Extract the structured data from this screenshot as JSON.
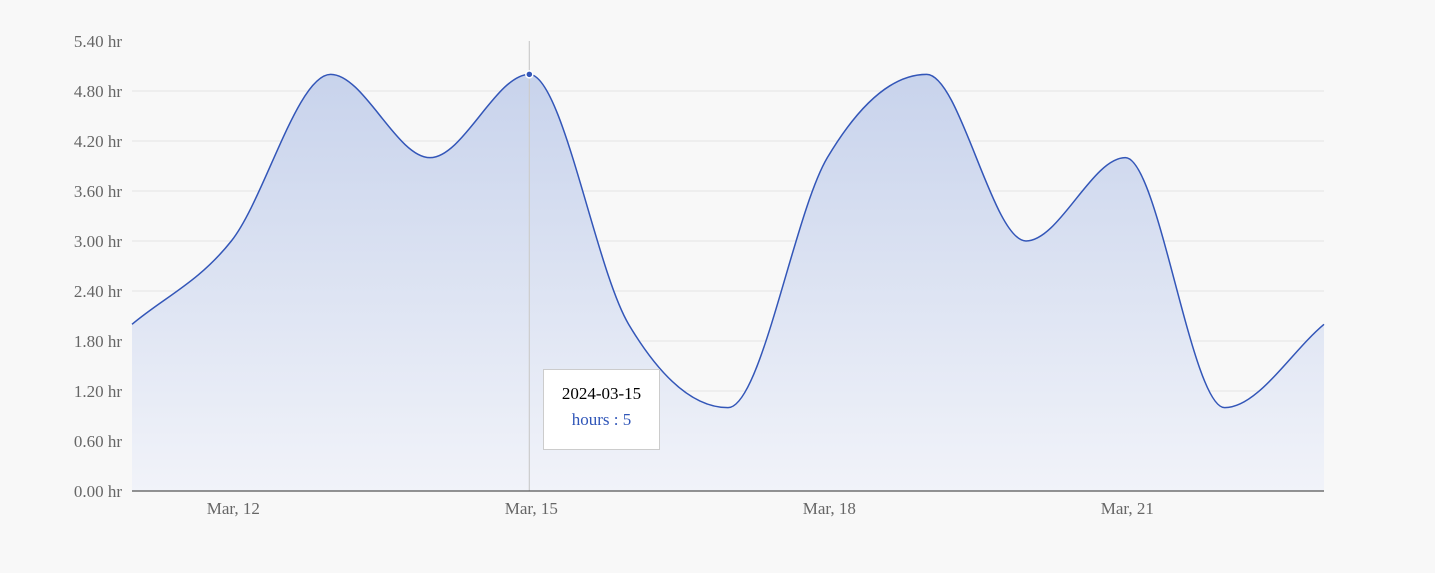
{
  "colors": {
    "line": "#3356b8",
    "area_top": "#c8d3ec",
    "area_bottom": "#f1f3f9",
    "grid": "#e4e4e4",
    "axis": "#555555",
    "crosshair": "#cccccc",
    "background": "#f8f8f8"
  },
  "chart_data": {
    "type": "area",
    "x": [
      "2024-03-11",
      "2024-03-12",
      "2024-03-13",
      "2024-03-14",
      "2024-03-15",
      "2024-03-16",
      "2024-03-17",
      "2024-03-18",
      "2024-03-19",
      "2024-03-20",
      "2024-03-21",
      "2024-03-22",
      "2024-03-23"
    ],
    "series": [
      {
        "name": "hours",
        "values": [
          2,
          3,
          5,
          4,
          5,
          2,
          1,
          4,
          5,
          3,
          4,
          1,
          2
        ]
      }
    ],
    "yticks": [
      "0.00 hr",
      "0.60 hr",
      "1.20 hr",
      "1.80 hr",
      "2.40 hr",
      "3.00 hr",
      "3.60 hr",
      "4.20 hr",
      "4.80 hr",
      "5.40 hr"
    ],
    "ylim": [
      0,
      5.4
    ],
    "xticks": [
      {
        "x": "2024-03-12",
        "label": "Mar, 12"
      },
      {
        "x": "2024-03-15",
        "label": "Mar, 15"
      },
      {
        "x": "2024-03-18",
        "label": "Mar, 18"
      },
      {
        "x": "2024-03-21",
        "label": "Mar, 21"
      }
    ],
    "grid": true,
    "legend": "none",
    "tooltip": {
      "date": "2024-03-15",
      "series_label": "hours",
      "separator": ":",
      "value": "5"
    }
  }
}
